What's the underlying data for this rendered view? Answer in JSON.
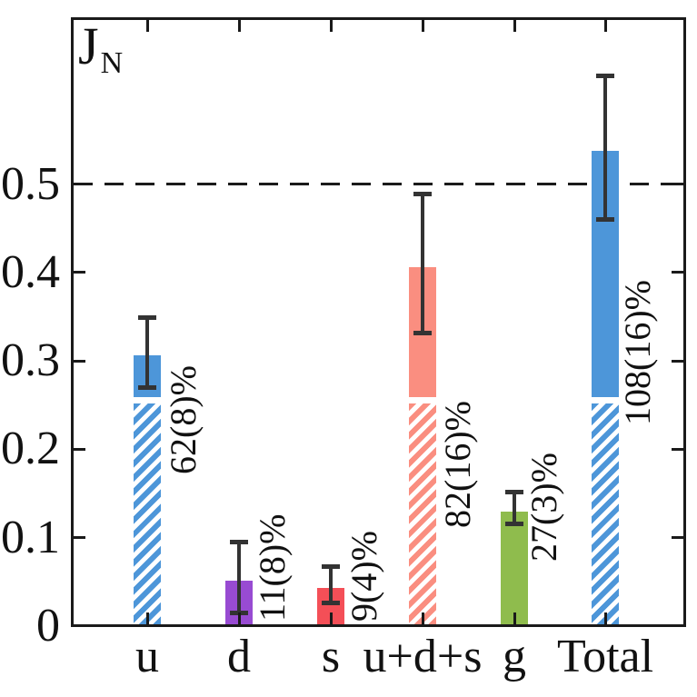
{
  "title": {
    "main": "J",
    "subscript": "N"
  },
  "chart_data": {
    "type": "bar",
    "categories": [
      "u",
      "d",
      "s",
      "u+d+s",
      "g",
      "Total"
    ],
    "values": [
      0.306,
      0.051,
      0.043,
      0.406,
      0.13,
      0.537
    ],
    "error_low": [
      0.27,
      0.015,
      0.026,
      0.331,
      0.116,
      0.46
    ],
    "error_high": [
      0.349,
      0.095,
      0.067,
      0.489,
      0.152,
      0.622
    ],
    "bar_labels": [
      "62(8)%",
      "11(8)%",
      "9(4)%",
      "82(16)%",
      "27(3)%",
      "108(16)%"
    ],
    "bar_colors": [
      "#4D96D9",
      "#984BD2",
      "#F44F57",
      "#FA8E80",
      "#8FBC4D",
      "#4D96D9"
    ],
    "hatched": [
      true,
      false,
      false,
      true,
      false,
      true
    ],
    "hatch_top_value": 0.252,
    "reference_line_value": 0.5,
    "y_ticks": [
      "0",
      "0.1",
      "0.2",
      "0.3",
      "0.4",
      "0.5"
    ],
    "y_tick_values": [
      0,
      0.1,
      0.2,
      0.3,
      0.4,
      0.5
    ],
    "ylim": [
      0,
      0.688
    ],
    "ylabel": "JN",
    "grid": false,
    "legend": null
  },
  "colors": {
    "error_bar": "#333333",
    "frame": "#1a1a1a",
    "dashed_line": "#1a1a1a",
    "background": "#ffffff"
  }
}
